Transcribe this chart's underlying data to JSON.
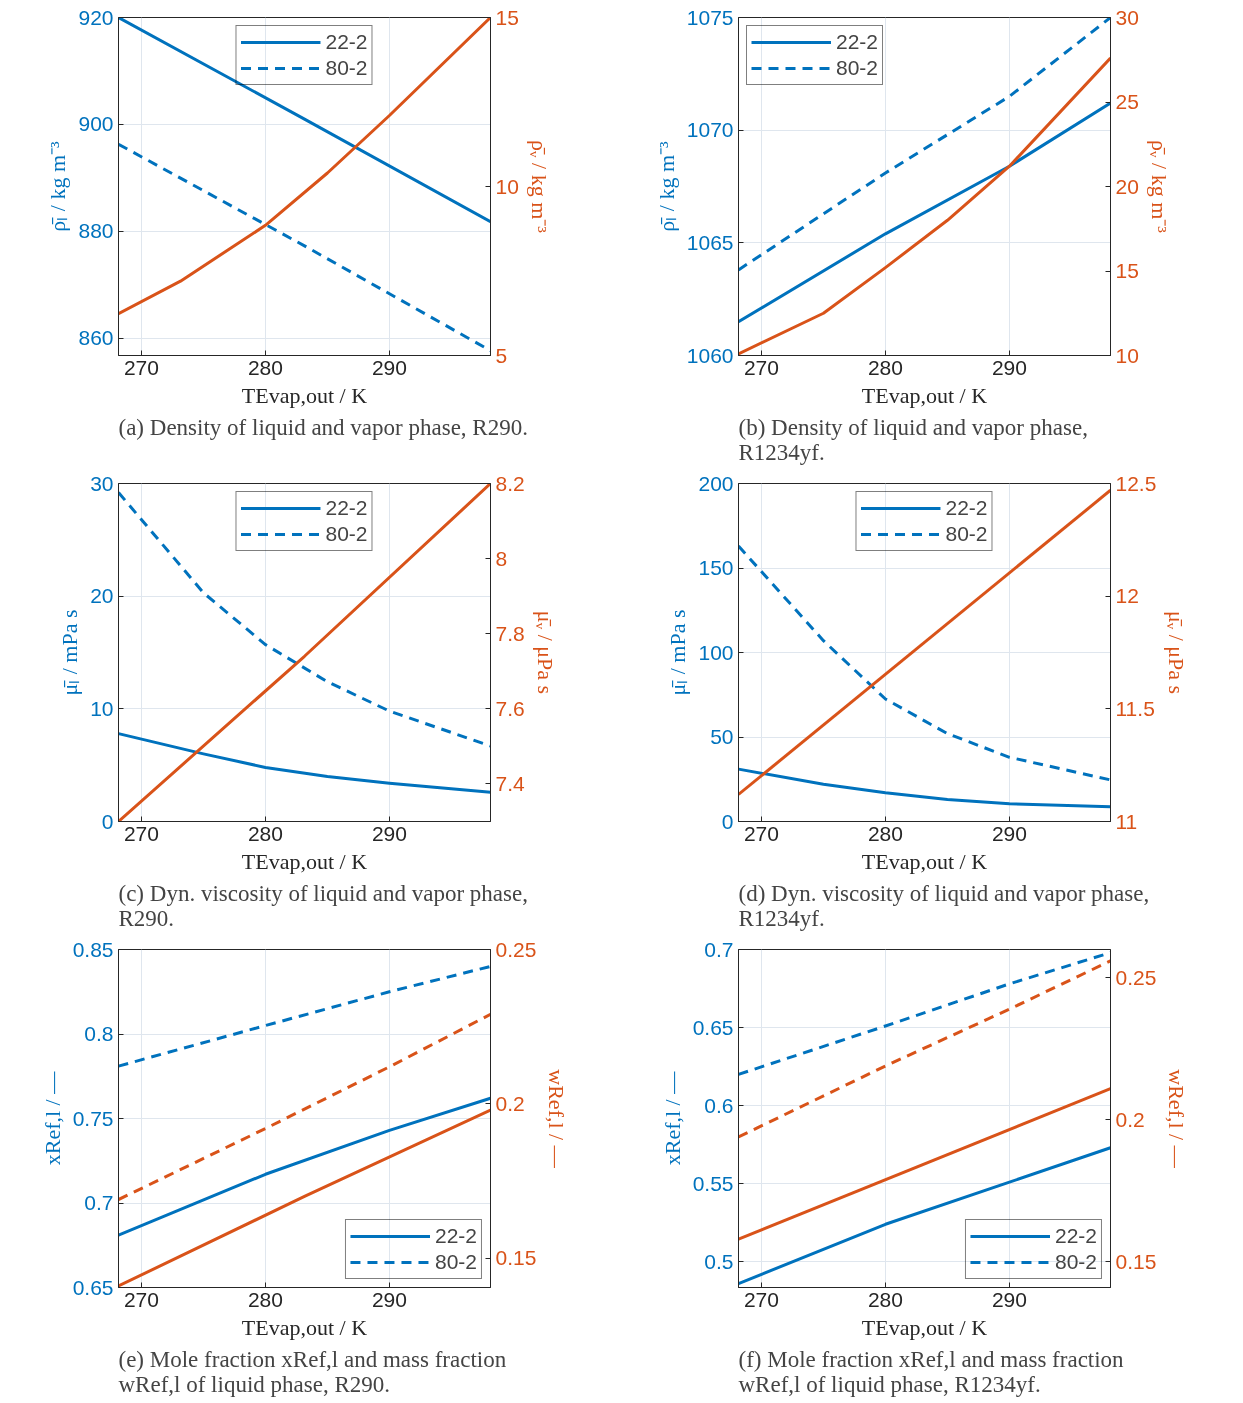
{
  "chart_data": [
    {
      "type": "line",
      "xlabel": "TEvap,out / K",
      "ylabel": "ρ̄ₗ / kg m⁻³",
      "y2label": "ρ̄ᵥ / kg m⁻³",
      "xlim": [
        268.15,
        298.15
      ],
      "xticks": [
        270,
        280,
        290
      ],
      "ylim": [
        856.8,
        920
      ],
      "yticks": [
        860,
        880,
        900,
        920
      ],
      "y2lim": [
        5,
        15
      ],
      "y2ticks": [
        5,
        10,
        15
      ],
      "grid": true,
      "legend": "top",
      "annotations": [
        "(a) Density of liquid and vapor phase, R290."
      ],
      "series": [
        {
          "name": "22-2",
          "color": "#0072bd",
          "line_style": "solid",
          "x": [
            268.15,
            283.15,
            298.15
          ],
          "values": [
            920,
            901,
            881.8
          ]
        },
        {
          "name": "80-2",
          "color": "#0072bd",
          "line_style": "dashed",
          "x": [
            268.15,
            283.15,
            298.15
          ],
          "values": [
            896.3,
            877.3,
            857.7
          ]
        },
        {
          "color": "#d95319",
          "line_style": "solid",
          "axis": "y2",
          "x": [
            268.15,
            273.15,
            280,
            285,
            290,
            298.15
          ],
          "values": [
            6.24,
            7.2,
            8.85,
            10.4,
            12.1,
            15
          ]
        }
      ]
    },
    {
      "type": "line",
      "xlabel": "TEvap,out / K",
      "ylabel": "ρ̄ₗ / kg m⁻³",
      "y2label": "ρ̄ᵥ / kg m⁻³",
      "xlim": [
        268.15,
        298.15
      ],
      "xticks": [
        270,
        280,
        290
      ],
      "ylim": [
        1060,
        1075
      ],
      "yticks": [
        1060,
        1065,
        1070,
        1075
      ],
      "y2lim": [
        10,
        30
      ],
      "y2ticks": [
        10,
        15,
        20,
        25,
        30
      ],
      "grid": true,
      "legend": "top left",
      "annotations": [
        "(b) Density of liquid and vapor phase, R1234yf."
      ],
      "series": [
        {
          "name": "22-2",
          "color": "#0072bd",
          "line_style": "solid",
          "x": [
            268.15,
            280,
            290,
            298.15
          ],
          "values": [
            1061.5,
            1065.4,
            1068.4,
            1071.2
          ]
        },
        {
          "name": "80-2",
          "color": "#0072bd",
          "line_style": "dashed",
          "x": [
            268.15,
            280,
            290,
            298.15
          ],
          "values": [
            1063.8,
            1068.1,
            1071.5,
            1075
          ]
        },
        {
          "color": "#d95319",
          "line_style": "solid",
          "axis": "y2",
          "x": [
            268.15,
            275,
            280,
            285,
            290,
            298.15
          ],
          "values": [
            10.1,
            12.5,
            15.2,
            18,
            21.2,
            27.6
          ]
        }
      ]
    },
    {
      "type": "line",
      "xlabel": "TEvap,out / K",
      "ylabel": "μ̄ₗ / mPa s",
      "y2label": "μ̄ᵥ / μPa s",
      "xlim": [
        268.15,
        298.15
      ],
      "xticks": [
        270,
        280,
        290
      ],
      "ylim": [
        0,
        30
      ],
      "yticks": [
        0,
        10,
        20,
        30
      ],
      "y2lim": [
        7.3,
        8.2
      ],
      "y2ticks": [
        7.4,
        7.6,
        7.8,
        8,
        8.2
      ],
      "grid": true,
      "legend": "top",
      "annotations": [
        "(c) Dyn. viscosity of liquid and vapor phase, R290."
      ],
      "series": [
        {
          "name": "22-2",
          "color": "#0072bd",
          "line_style": "solid",
          "x": [
            268.15,
            275,
            280,
            285,
            290,
            298.15
          ],
          "values": [
            7.8,
            6,
            4.8,
            4,
            3.4,
            2.6
          ]
        },
        {
          "name": "80-2",
          "color": "#0072bd",
          "line_style": "dashed",
          "x": [
            268.15,
            275,
            280,
            285,
            290,
            298.15
          ],
          "values": [
            29.2,
            20.3,
            15.7,
            12.4,
            9.8,
            6.7
          ]
        },
        {
          "color": "#d95319",
          "line_style": "solid",
          "axis": "y2",
          "x": [
            268.15,
            283.15,
            298.15
          ],
          "values": [
            7.3,
            7.74,
            8.2
          ]
        }
      ]
    },
    {
      "type": "line",
      "xlabel": "TEvap,out / K",
      "ylabel": "μ̄ₗ / mPa s",
      "y2label": "μ̄ᵥ / μPa s",
      "xlim": [
        268.15,
        298.15
      ],
      "xticks": [
        270,
        280,
        290
      ],
      "ylim": [
        0,
        200
      ],
      "yticks": [
        0,
        50,
        100,
        150,
        200
      ],
      "y2lim": [
        11,
        12.5
      ],
      "y2ticks": [
        11,
        11.5,
        12,
        12.5
      ],
      "grid": true,
      "legend": "top",
      "annotations": [
        "(d) Dyn. viscosity of liquid and vapor phase, R1234yf."
      ],
      "series": [
        {
          "name": "22-2",
          "color": "#0072bd",
          "line_style": "solid",
          "x": [
            268.15,
            275,
            280,
            285,
            290,
            298.15
          ],
          "values": [
            31,
            22,
            17,
            13,
            10.5,
            8.7
          ]
        },
        {
          "name": "80-2",
          "color": "#0072bd",
          "line_style": "dashed",
          "x": [
            268.15,
            275,
            280,
            285,
            290,
            298.15
          ],
          "values": [
            163,
            107,
            72.5,
            52,
            38,
            24.6
          ]
        },
        {
          "color": "#d95319",
          "line_style": "solid",
          "axis": "y2",
          "x": [
            268.15,
            298.15
          ],
          "values": [
            11.12,
            12.47
          ]
        }
      ]
    },
    {
      "type": "line",
      "xlabel": "TEvap,out / K",
      "ylabel": "xRef,l / —",
      "y2label": "wRef,l / —",
      "xlim": [
        268.15,
        298.15
      ],
      "xticks": [
        270,
        280,
        290
      ],
      "ylim": [
        0.65,
        0.85
      ],
      "yticks": [
        0.65,
        0.7,
        0.75,
        0.8,
        0.85
      ],
      "y2lim": [
        0.1405,
        0.25
      ],
      "y2ticks": [
        0.15,
        0.2,
        0.25
      ],
      "grid": true,
      "legend": "bottom right",
      "annotations": [
        "(e) Mole fraction xRef,l and mass fraction wRef,l of liquid phase, R290."
      ],
      "series": [
        {
          "name": "22-2",
          "color": "#0072bd",
          "line_style": "solid",
          "x": [
            268.15,
            280,
            290,
            298.15
          ],
          "values": [
            0.681,
            0.717,
            0.743,
            0.762
          ]
        },
        {
          "name": "80-2",
          "color": "#0072bd",
          "line_style": "dashed",
          "x": [
            268.15,
            280,
            290,
            298.15
          ],
          "values": [
            0.781,
            0.805,
            0.825,
            0.84
          ]
        },
        {
          "color": "#d95319",
          "line_style": "solid",
          "axis": "y2",
          "x": [
            268.15,
            283.15,
            298.15
          ],
          "values": [
            0.141,
            0.17,
            0.198
          ]
        },
        {
          "color": "#d95319",
          "line_style": "dashed",
          "axis": "y2",
          "x": [
            268.15,
            280,
            290,
            298.15
          ],
          "values": [
            0.169,
            0.192,
            0.212,
            0.229
          ]
        }
      ]
    },
    {
      "type": "line",
      "xlabel": "TEvap,out / K",
      "ylabel": "xRef,l / —",
      "y2label": "wRef,l / —",
      "xlim": [
        268.15,
        298.15
      ],
      "xticks": [
        270,
        280,
        290
      ],
      "ylim": [
        0.4835,
        0.7
      ],
      "yticks": [
        0.5,
        0.55,
        0.6,
        0.65,
        0.7
      ],
      "y2lim": [
        0.141,
        0.26
      ],
      "y2ticks": [
        0.15,
        0.2,
        0.25
      ],
      "grid": true,
      "legend": "bottom right",
      "annotations": [
        "(f) Mole fraction xRef,l and mass fraction wRef,l of liquid phase, R1234yf."
      ],
      "series": [
        {
          "name": "22-2",
          "color": "#0072bd",
          "line_style": "solid",
          "x": [
            268.15,
            280,
            290,
            298.15
          ],
          "values": [
            0.486,
            0.524,
            0.551,
            0.573
          ]
        },
        {
          "name": "80-2",
          "color": "#0072bd",
          "line_style": "dashed",
          "x": [
            268.15,
            280,
            290,
            298.15
          ],
          "values": [
            0.62,
            0.651,
            0.678,
            0.698
          ]
        },
        {
          "color": "#d95319",
          "line_style": "solid",
          "axis": "y2",
          "x": [
            268.15,
            298.15
          ],
          "values": [
            0.158,
            0.211
          ]
        },
        {
          "color": "#d95319",
          "line_style": "dashed",
          "axis": "y2",
          "x": [
            268.15,
            280,
            290,
            298.15
          ],
          "values": [
            0.194,
            0.219,
            0.239,
            0.256
          ]
        }
      ]
    }
  ]
}
